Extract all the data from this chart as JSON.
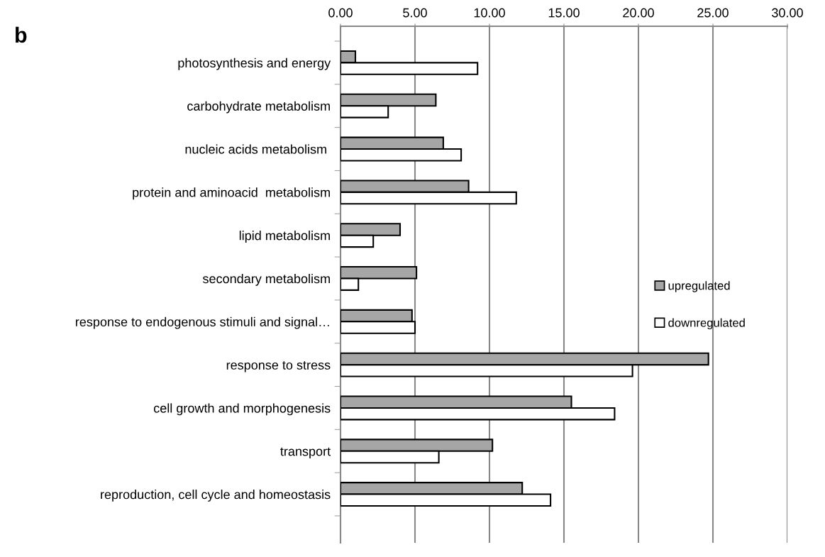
{
  "chart_data": {
    "type": "bar",
    "orientation": "horizontal",
    "title": "b",
    "categories": [
      "photosynthesis and energy",
      "carbohydrate metabolism",
      "nucleic acids metabolism ",
      "protein and aminoacid  metabolism",
      "lipid metabolism",
      "secondary metabolism",
      "response to endogenous stimuli and signal…",
      "response to stress",
      "cell growth and morphogenesis",
      "transport",
      "reproduction, cell cycle and homeostasis"
    ],
    "series": [
      {
        "name": "upregulated",
        "color": "#a6a6a6",
        "values": [
          1.0,
          6.4,
          6.9,
          8.6,
          4.0,
          5.1,
          4.8,
          24.7,
          15.5,
          10.2,
          12.2
        ]
      },
      {
        "name": "downregulated",
        "color": "#ffffff",
        "values": [
          9.2,
          3.2,
          8.1,
          11.8,
          2.2,
          1.2,
          5.0,
          19.6,
          18.4,
          6.6,
          14.1
        ]
      }
    ],
    "xlim": [
      0,
      30
    ],
    "xticks": [
      {
        "value": 0,
        "label": "0.00"
      },
      {
        "value": 5,
        "label": "5.00"
      },
      {
        "value": 10,
        "label": "10.00"
      },
      {
        "value": 15,
        "label": "15.00"
      },
      {
        "value": 20,
        "label": "20.00"
      },
      {
        "value": 25,
        "label": "25.00"
      },
      {
        "value": 30,
        "label": "30.00"
      }
    ],
    "grid": "x",
    "legend": "right"
  }
}
